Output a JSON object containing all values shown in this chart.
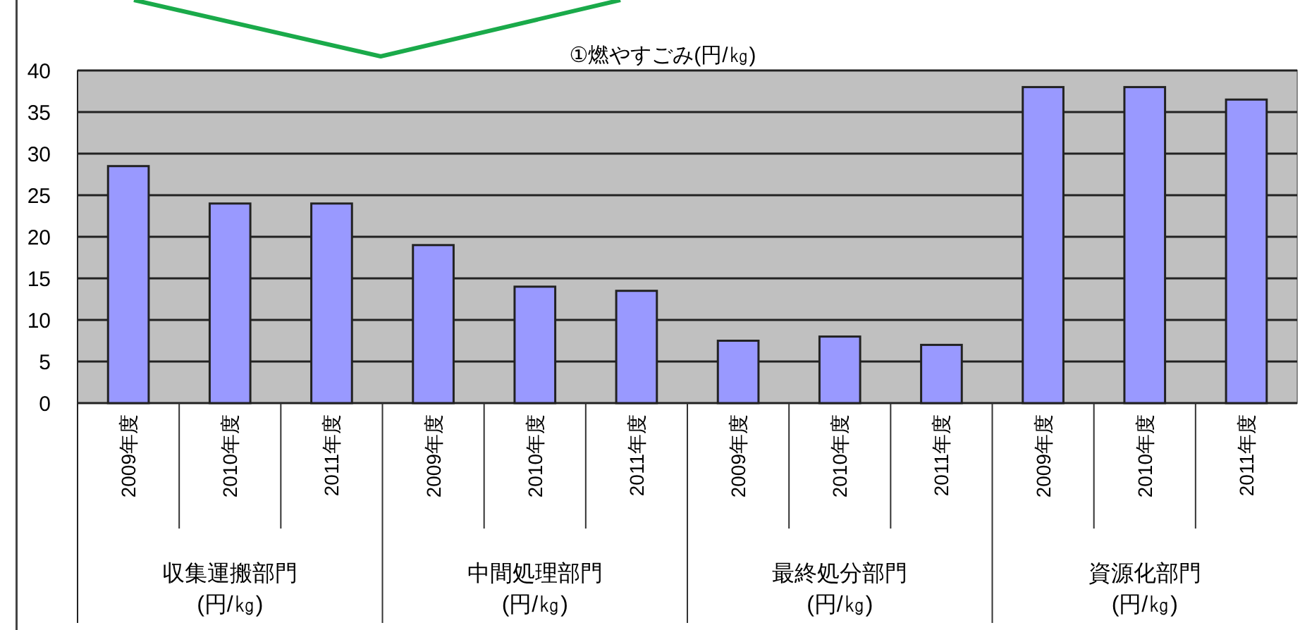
{
  "chart_data": {
    "type": "bar",
    "title": "①燃やすごみ(円/㎏)",
    "categories": [
      "2009年度",
      "2010年度",
      "2011年度",
      "2009年度",
      "2010年度",
      "2011年度",
      "2009年度",
      "2010年度",
      "2011年度",
      "2009年度",
      "2010年度",
      "2011年度"
    ],
    "values": [
      28.5,
      24,
      24,
      19,
      14,
      13.5,
      7.5,
      8,
      7,
      38,
      38,
      36.5
    ],
    "color": "#9999ff",
    "ylim": [
      0,
      40
    ],
    "yticks": [
      0,
      5,
      10,
      15,
      20,
      25,
      30,
      35,
      40
    ],
    "grid": "y",
    "annotations": [
      "収集運搬部門\n(円/㎏)",
      "中間処理部門\n(円/㎏)",
      "最終処分部門\n(円/㎏)",
      "資源化部門\n(円/㎏)"
    ]
  }
}
